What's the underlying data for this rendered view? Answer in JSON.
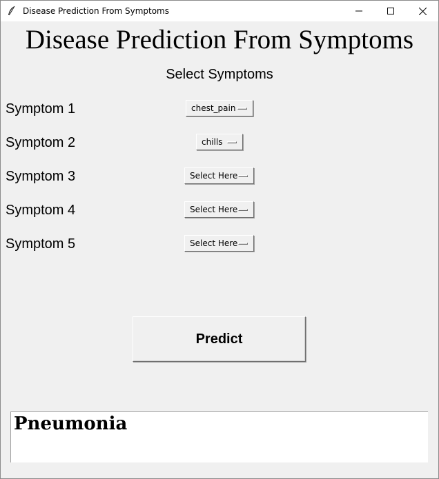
{
  "window": {
    "title": "Disease Prediction From Symptoms"
  },
  "header": {
    "title": "Disease Prediction From Symptoms",
    "subtitle": "Select Symptoms"
  },
  "symptoms": [
    {
      "label": "Symptom 1",
      "value": "chest_pain"
    },
    {
      "label": "Symptom 2",
      "value": "chills"
    },
    {
      "label": "Symptom 3",
      "value": "Select Here"
    },
    {
      "label": "Symptom 4",
      "value": "Select Here"
    },
    {
      "label": "Symptom 5",
      "value": "Select Here"
    }
  ],
  "predict_button": {
    "label": "Predict"
  },
  "result": {
    "text": "Pneumonia"
  }
}
